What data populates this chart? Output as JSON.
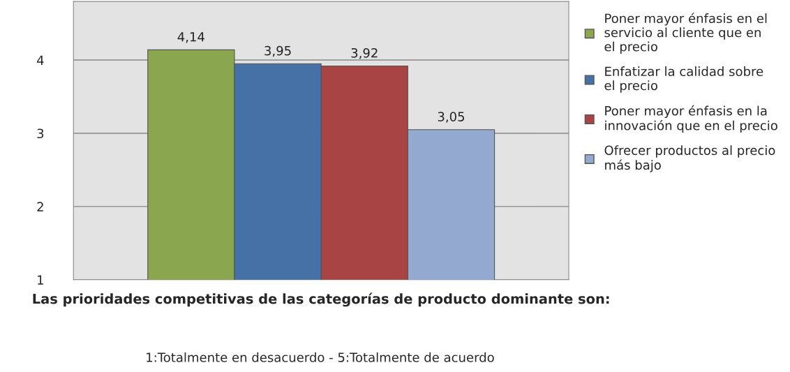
{
  "chart_data": {
    "type": "bar",
    "categories": [
      null
    ],
    "series": [
      {
        "name": "Poner mayor énfasis en el servicio al cliente que en el precio",
        "color": "#8aa64f",
        "values": [
          4.14
        ],
        "value_labels": [
          "4,14"
        ]
      },
      {
        "name": "Enfatizar la calidad sobre el precio",
        "color": "#4571a6",
        "values": [
          3.95
        ],
        "value_labels": [
          "3,95"
        ]
      },
      {
        "name": "Poner mayor énfasis en la innovación que en el precio",
        "color": "#a84443",
        "values": [
          3.92
        ],
        "value_labels": [
          "3,92"
        ]
      },
      {
        "name": "Ofrecer productos al precio más bajo",
        "color": "#93a9cf",
        "values": [
          3.05
        ],
        "value_labels": [
          "3,05"
        ]
      }
    ],
    "xlabel": "Las prioridades competitivas de las categorías de producto dominante son:",
    "annotations": [
      "1:Totalmente en desacuerdo - 5:Totalmente de acuerdo"
    ],
    "ylim": [
      1,
      4.8
    ],
    "yticks": [
      1,
      2,
      3,
      4
    ],
    "grid": "y",
    "legend": "right"
  }
}
